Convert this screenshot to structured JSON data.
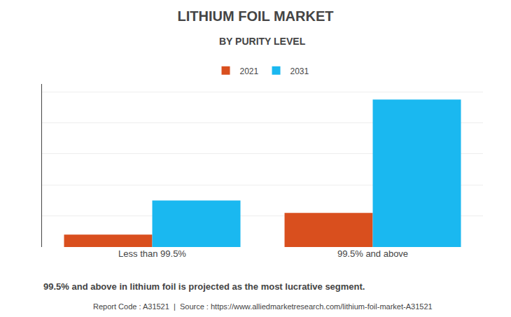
{
  "chart_data": {
    "type": "bar",
    "title": "LITHIUM FOIL MARKET",
    "subtitle": "BY PURITY LEVEL",
    "categories": [
      "Less than 99.5%",
      "99.5% and above"
    ],
    "series": [
      {
        "name": "2021",
        "color": "#d94f1e",
        "values": [
          0.08,
          0.22
        ]
      },
      {
        "name": "2031",
        "color": "#1ab8f0",
        "values": [
          0.3,
          0.95
        ]
      }
    ],
    "ylim": [
      0,
      1.05
    ],
    "yticks": [
      0,
      0.2,
      0.4,
      0.6,
      0.8,
      1.0
    ],
    "grid": true,
    "legend": "top",
    "tick_labels": "x",
    "annotations": [
      "99.5% and above in lithium foil is projected as the most lucrative segment.",
      "Report Code : A31521  |  Source : https://www.alliedmarketresearch.com/lithium-foil-market-A31521"
    ]
  }
}
